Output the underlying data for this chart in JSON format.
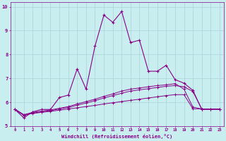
{
  "xlabel": "Windchill (Refroidissement éolien,°C)",
  "ylabel": "",
  "xlim": [
    -0.5,
    23.5
  ],
  "ylim": [
    5.0,
    10.2
  ],
  "yticks": [
    5,
    6,
    7,
    8,
    9,
    10
  ],
  "xticks": [
    0,
    1,
    2,
    3,
    4,
    5,
    6,
    7,
    8,
    9,
    10,
    11,
    12,
    13,
    14,
    15,
    16,
    17,
    18,
    19,
    20,
    21,
    22,
    23
  ],
  "bg_color": "#c8eef0",
  "grid_color": "#aad4d8",
  "line_color": "#880088",
  "line1_x": [
    0,
    1,
    2,
    3,
    4,
    5,
    6,
    7,
    8,
    9,
    10,
    11,
    12,
    13,
    14,
    15,
    16,
    17,
    18,
    19,
    20,
    21,
    22,
    23
  ],
  "line1_y": [
    5.7,
    5.35,
    5.6,
    5.7,
    5.7,
    6.2,
    6.3,
    7.4,
    6.55,
    8.35,
    9.65,
    9.35,
    9.8,
    8.5,
    8.6,
    7.3,
    7.3,
    7.55,
    6.95,
    6.8,
    6.5,
    5.7,
    5.7,
    5.7
  ],
  "line2_x": [
    0,
    1,
    2,
    3,
    4,
    5,
    6,
    7,
    8,
    9,
    10,
    11,
    12,
    13,
    14,
    15,
    16,
    17,
    18,
    19,
    20,
    21,
    22,
    23
  ],
  "line2_y": [
    5.7,
    5.45,
    5.55,
    5.6,
    5.65,
    5.72,
    5.78,
    5.88,
    5.97,
    6.07,
    6.18,
    6.28,
    6.38,
    6.47,
    6.52,
    6.57,
    6.62,
    6.67,
    6.7,
    6.65,
    6.45,
    5.72,
    5.72,
    5.72
  ],
  "line3_x": [
    0,
    1,
    2,
    3,
    4,
    5,
    6,
    7,
    8,
    9,
    10,
    11,
    12,
    13,
    14,
    15,
    16,
    17,
    18,
    19,
    20,
    21,
    22,
    23
  ],
  "line3_y": [
    5.7,
    5.48,
    5.58,
    5.63,
    5.68,
    5.75,
    5.82,
    5.93,
    6.03,
    6.13,
    6.25,
    6.35,
    6.47,
    6.55,
    6.6,
    6.65,
    6.7,
    6.73,
    6.78,
    6.55,
    5.8,
    5.72,
    5.72,
    5.72
  ],
  "line4_x": [
    0,
    1,
    2,
    3,
    4,
    5,
    6,
    7,
    8,
    9,
    10,
    11,
    12,
    13,
    14,
    15,
    16,
    17,
    18,
    19,
    20,
    21,
    22,
    23
  ],
  "line4_y": [
    5.72,
    5.48,
    5.53,
    5.58,
    5.62,
    5.67,
    5.72,
    5.77,
    5.82,
    5.87,
    5.93,
    5.98,
    6.03,
    6.08,
    6.13,
    6.18,
    6.23,
    6.28,
    6.32,
    6.32,
    5.73,
    5.72,
    5.72,
    5.72
  ]
}
